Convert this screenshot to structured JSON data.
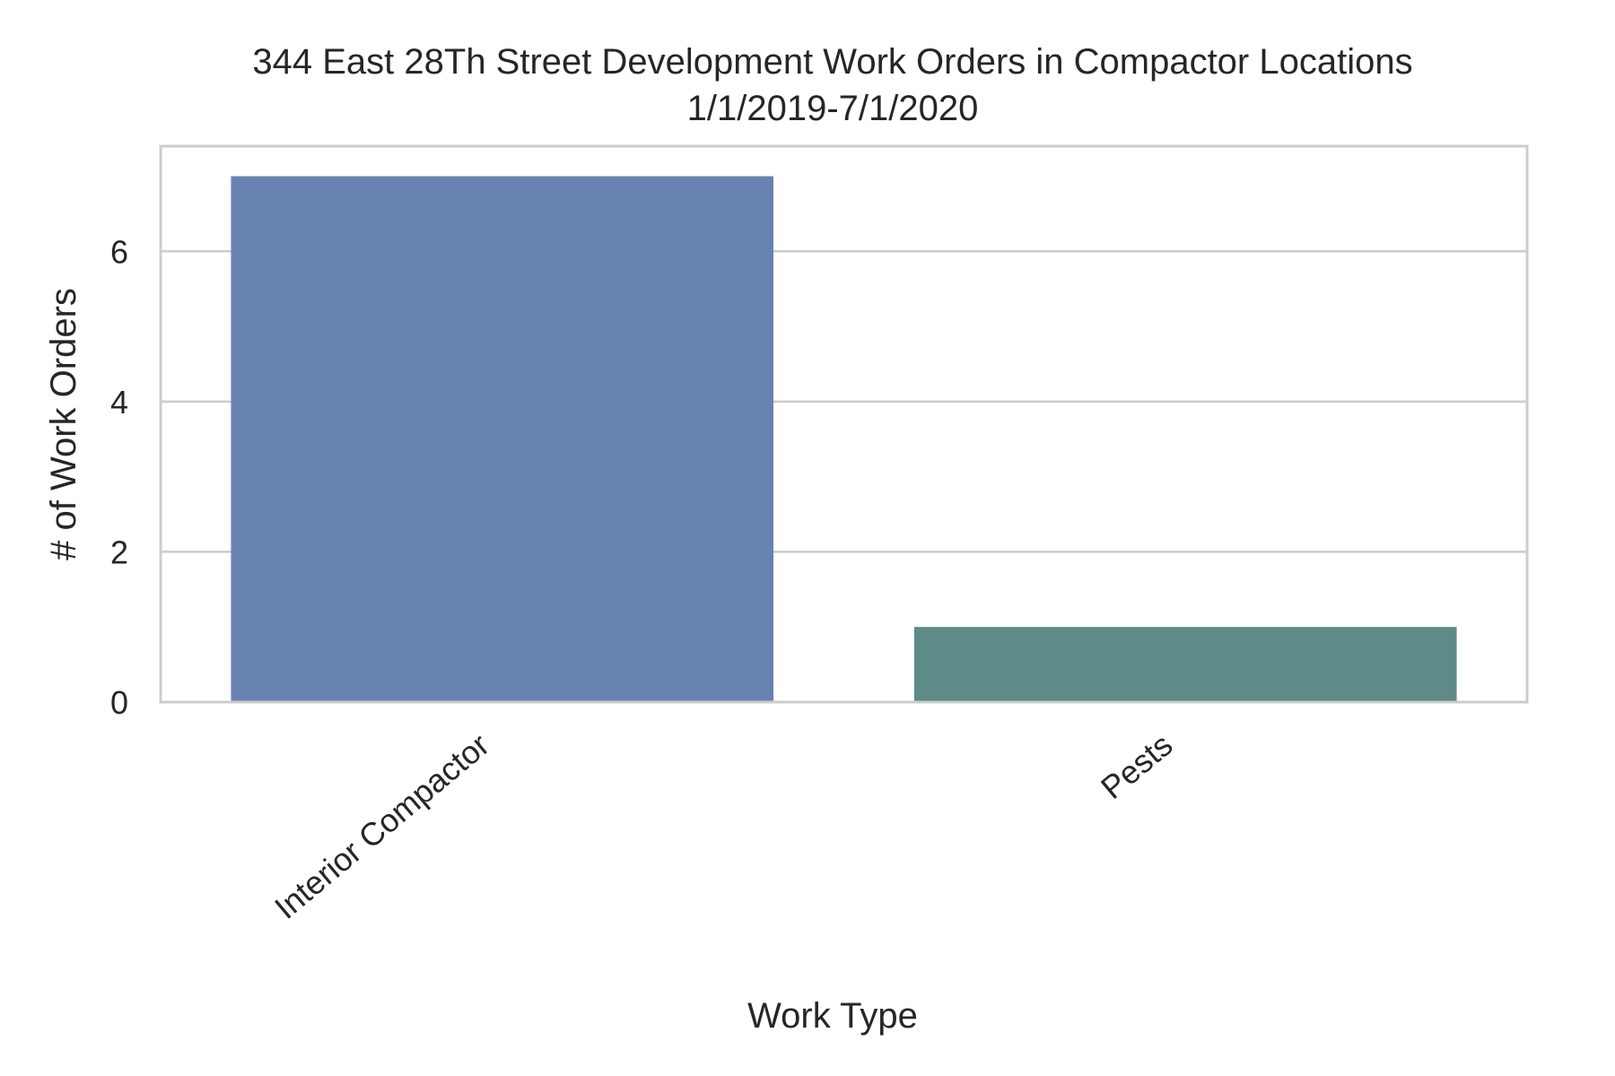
{
  "chart_data": {
    "type": "bar",
    "title": "344 East 28Th Street Development Work Orders in Compactor Locations",
    "subtitle": "1/1/2019-7/1/2020",
    "xlabel": "Work Type",
    "ylabel": "# of Work Orders",
    "categories": [
      "Interior Compactor",
      "Pests"
    ],
    "values": [
      7,
      1
    ],
    "colors": [
      "#6882b1",
      "#5e8a87"
    ],
    "ylim": [
      0,
      7.4
    ],
    "yticks": [
      0,
      2,
      4,
      6
    ],
    "grid": true,
    "legend": "none"
  }
}
